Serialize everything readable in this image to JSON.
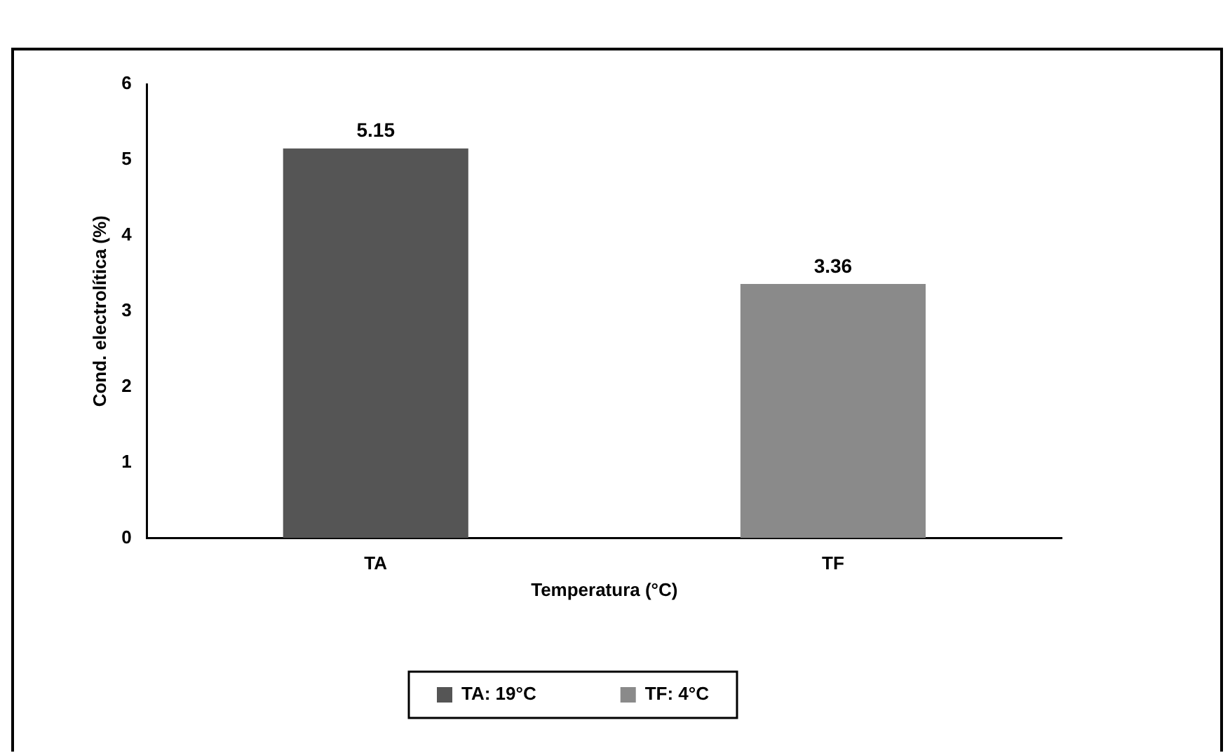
{
  "chart_data": {
    "type": "bar",
    "xlabel": "Temperatura (°C)",
    "ylabel": "Cond. electrolítica (%)",
    "categories": [
      "TA",
      "TF"
    ],
    "series": [
      {
        "name": "TA: 19°C",
        "color": "#555555",
        "values": [
          5.15,
          null
        ]
      },
      {
        "name": "TF: 4°C",
        "color": "#8a8a8a",
        "values": [
          null,
          3.36
        ]
      }
    ],
    "ylim": [
      0,
      6
    ],
    "yticks": [
      0,
      1,
      2,
      3,
      4,
      5,
      6
    ],
    "grid": false,
    "legend": "bottom",
    "data_labels": true
  }
}
